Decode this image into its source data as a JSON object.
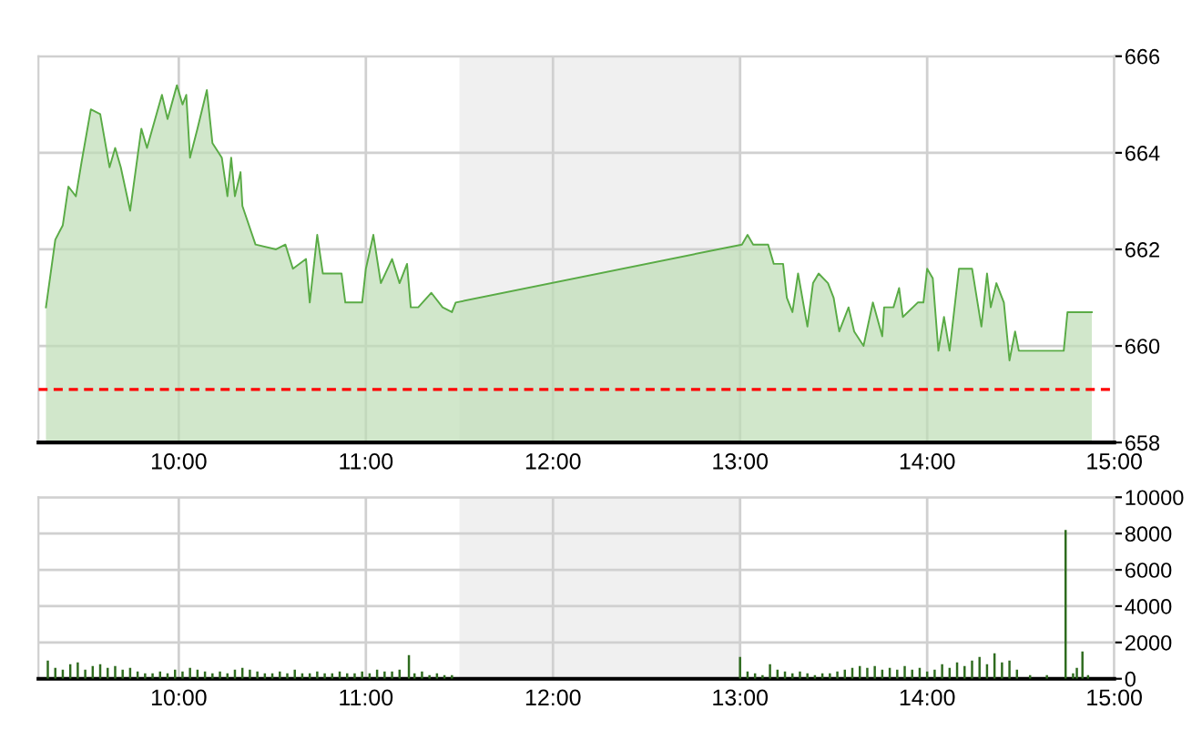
{
  "chart_data": [
    {
      "type": "area",
      "series": [
        {
          "color": "#5aab46",
          "x": [
            9.29,
            9.34,
            9.38,
            9.41,
            9.45,
            9.48,
            9.53,
            9.58,
            9.63,
            9.66,
            9.69,
            9.74,
            9.8,
            9.83,
            9.91,
            9.94,
            9.99,
            10.02,
            10.04,
            10.06,
            10.1,
            10.15,
            10.18,
            10.23,
            10.26,
            10.28,
            10.3,
            10.33,
            10.34,
            10.41,
            10.52,
            10.57,
            10.61,
            10.68,
            10.7,
            10.74,
            10.77,
            10.87,
            10.89,
            10.98,
            11.0,
            11.04,
            11.08,
            11.14,
            11.18,
            11.22,
            11.24,
            11.28,
            11.35,
            11.41,
            11.46,
            11.48,
            13.01,
            13.04,
            13.07,
            13.15,
            13.18,
            13.23,
            13.25,
            13.28,
            13.31,
            13.36,
            13.39,
            13.42,
            13.47,
            13.5,
            13.53,
            13.58,
            13.61,
            13.66,
            13.71,
            13.76,
            13.77,
            13.82,
            13.85,
            13.87,
            13.95,
            13.98,
            14.0,
            14.03,
            14.06,
            14.09,
            14.12,
            14.17,
            14.24,
            14.29,
            14.32,
            14.34,
            14.37,
            14.41,
            14.44,
            14.47,
            14.49,
            14.73,
            14.75,
            14.88
          ],
          "values": [
            660.8,
            662.2,
            662.5,
            663.3,
            663.1,
            663.8,
            664.9,
            664.8,
            663.7,
            664.1,
            663.7,
            662.8,
            664.5,
            664.1,
            665.2,
            664.7,
            665.4,
            665.0,
            665.2,
            663.9,
            664.5,
            665.3,
            664.2,
            663.9,
            663.1,
            663.9,
            663.1,
            663.6,
            662.9,
            662.1,
            662.0,
            662.1,
            661.6,
            661.8,
            660.9,
            662.3,
            661.5,
            661.5,
            660.9,
            660.9,
            661.6,
            662.3,
            661.3,
            661.8,
            661.3,
            661.7,
            660.8,
            660.8,
            661.1,
            660.8,
            660.7,
            660.9,
            662.1,
            662.3,
            662.1,
            662.1,
            661.7,
            661.7,
            661.0,
            660.7,
            661.5,
            660.4,
            661.3,
            661.5,
            661.3,
            661.0,
            660.3,
            660.8,
            660.3,
            660.0,
            660.9,
            660.2,
            660.8,
            660.8,
            661.2,
            660.6,
            660.9,
            660.9,
            661.6,
            661.4,
            659.9,
            660.6,
            659.9,
            661.6,
            661.6,
            660.4,
            661.5,
            660.8,
            661.3,
            660.9,
            659.7,
            660.3,
            659.9,
            659.9,
            660.7,
            660.7
          ]
        }
      ],
      "xlim": [
        9.25,
        15
      ],
      "xticks": [
        {
          "value": 10,
          "label": "10:00"
        },
        {
          "value": 11,
          "label": "11:00"
        },
        {
          "value": 12,
          "label": "12:00"
        },
        {
          "value": 13,
          "label": "13:00"
        },
        {
          "value": 14,
          "label": "14:00"
        },
        {
          "value": 15,
          "label": "15:00"
        }
      ],
      "ylim": [
        658,
        666
      ],
      "yticks": [
        658,
        660,
        662,
        664,
        666
      ],
      "grid": true,
      "ref_lines": [
        {
          "axis": "y",
          "value": 659.1,
          "color": "#ff0000",
          "line_style": "dashed"
        }
      ],
      "bands": [
        {
          "axis": "x",
          "from": 11.5,
          "to": 13,
          "color": "#f0f0f0"
        }
      ]
    },
    {
      "type": "bar",
      "series": [
        {
          "color": "#2e6b1e",
          "x": [
            9.3,
            9.34,
            9.38,
            9.42,
            9.46,
            9.5,
            9.54,
            9.58,
            9.62,
            9.66,
            9.7,
            9.74,
            9.78,
            9.82,
            9.86,
            9.9,
            9.94,
            9.98,
            10.02,
            10.06,
            10.1,
            10.14,
            10.18,
            10.22,
            10.26,
            10.3,
            10.34,
            10.38,
            10.42,
            10.46,
            10.5,
            10.54,
            10.58,
            10.62,
            10.66,
            10.7,
            10.74,
            10.78,
            10.82,
            10.86,
            10.9,
            10.94,
            10.98,
            11.02,
            11.06,
            11.1,
            11.14,
            11.18,
            11.23,
            11.26,
            11.3,
            11.34,
            11.38,
            11.42,
            11.46,
            13.0,
            13.04,
            13.08,
            13.12,
            13.16,
            13.2,
            13.24,
            13.28,
            13.32,
            13.36,
            13.4,
            13.44,
            13.48,
            13.52,
            13.56,
            13.6,
            13.64,
            13.68,
            13.72,
            13.76,
            13.8,
            13.84,
            13.88,
            13.92,
            13.96,
            14.0,
            14.04,
            14.08,
            14.12,
            14.16,
            14.2,
            14.24,
            14.28,
            14.32,
            14.36,
            14.4,
            14.44,
            14.48,
            14.55,
            14.64,
            14.74,
            14.78,
            14.8,
            14.83,
            14.86
          ],
          "values": [
            1000,
            600,
            500,
            800,
            900,
            500,
            700,
            800,
            600,
            700,
            500,
            600,
            400,
            300,
            300,
            400,
            300,
            500,
            400,
            600,
            500,
            400,
            300,
            400,
            300,
            500,
            600,
            500,
            400,
            300,
            300,
            400,
            300,
            500,
            300,
            300,
            400,
            300,
            300,
            400,
            300,
            300,
            400,
            300,
            500,
            400,
            400,
            500,
            1300,
            300,
            400,
            200,
            300,
            200,
            200,
            1200,
            400,
            300,
            200,
            800,
            500,
            400,
            300,
            400,
            300,
            200,
            300,
            300,
            400,
            500,
            600,
            700,
            600,
            700,
            500,
            600,
            500,
            700,
            500,
            600,
            400,
            500,
            800,
            600,
            900,
            700,
            1000,
            1200,
            800,
            1400,
            900,
            1000,
            500,
            200,
            200,
            8200,
            300,
            600,
            1500,
            200
          ]
        }
      ],
      "xlim": [
        9.25,
        15
      ],
      "xticks": [
        {
          "value": 10,
          "label": "10:00"
        },
        {
          "value": 11,
          "label": "11:00"
        },
        {
          "value": 12,
          "label": "12:00"
        },
        {
          "value": 13,
          "label": "13:00"
        },
        {
          "value": 14,
          "label": "14:00"
        },
        {
          "value": 15,
          "label": "15:00"
        }
      ],
      "ylim": [
        0,
        10000
      ],
      "yticks": [
        0,
        2000,
        4000,
        6000,
        8000,
        10000
      ],
      "grid": true,
      "bands": [
        {
          "axis": "x",
          "from": 11.5,
          "to": 13,
          "color": "#f0f0f0"
        }
      ]
    }
  ]
}
